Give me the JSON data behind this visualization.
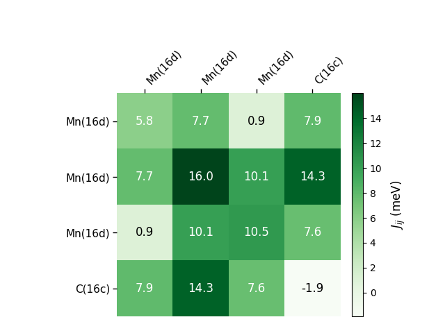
{
  "matrix": [
    [
      5.8,
      7.7,
      0.9,
      7.9
    ],
    [
      7.7,
      16.0,
      10.1,
      14.3
    ],
    [
      0.9,
      10.1,
      10.5,
      7.6
    ],
    [
      7.9,
      14.3,
      7.6,
      -1.9
    ]
  ],
  "row_labels": [
    "Mn(16d)",
    "Mn(16d)",
    "Mn(16d)",
    "C(16c)"
  ],
  "col_labels": [
    "Mn(16d)",
    "Mn(16d)",
    "Mn(16d)",
    "C(16c)"
  ],
  "cmap": "Greens",
  "vmin": -1.9,
  "vmax": 16.0,
  "colorbar_label_italic": "$J_{ij}$",
  "colorbar_label_normal": " (meV)",
  "colorbar_ticks": [
    0,
    2,
    4,
    6,
    8,
    10,
    12,
    14
  ],
  "figsize": [
    6.4,
    4.8
  ],
  "dpi": 100
}
